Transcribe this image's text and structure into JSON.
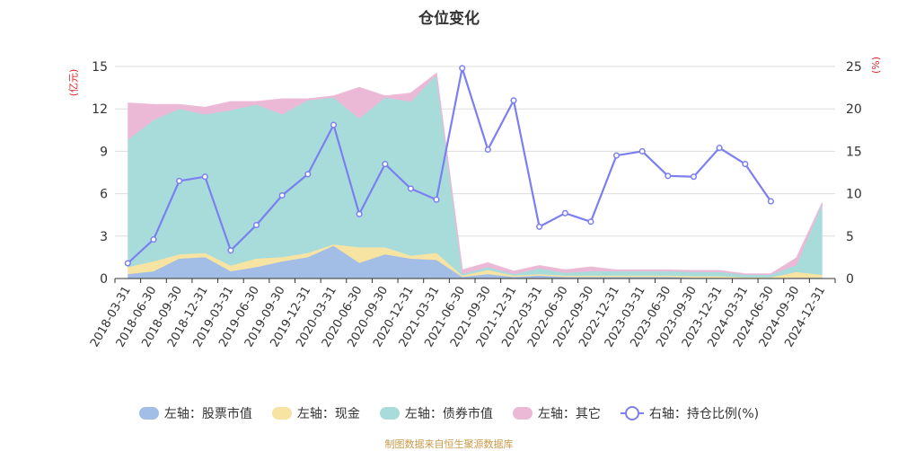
{
  "title": "仓位变化",
  "left_unit": "(亿元)",
  "right_unit": "(%)",
  "source": "制图数据来自恒生聚源数据库",
  "chart_data": {
    "type": "area",
    "categories": [
      "2018-03-31",
      "2018-06-30",
      "2018-09-30",
      "2018-12-31",
      "2019-03-31",
      "2019-06-30",
      "2019-09-30",
      "2019-12-31",
      "2020-03-31",
      "2020-06-30",
      "2020-09-30",
      "2020-12-31",
      "2021-03-31",
      "2021-06-30",
      "2021-09-30",
      "2021-12-31",
      "2022-03-31",
      "2022-06-30",
      "2022-09-30",
      "2022-12-31",
      "2023-03-31",
      "2023-06-30",
      "2023-09-30",
      "2023-12-31",
      "2024-03-31",
      "2024-06-30",
      "2024-09-30",
      "2024-12-31"
    ],
    "left_axis": {
      "min": 0,
      "max": 15,
      "ticks": [
        0,
        3,
        6,
        9,
        12,
        15
      ]
    },
    "right_axis": {
      "min": 0,
      "max": 25,
      "ticks": [
        0,
        5,
        10,
        15,
        20,
        25
      ]
    },
    "stacked_series": [
      {
        "name": "左轴：股票市值",
        "color": "#a2bde6",
        "values": [
          0.3,
          0.5,
          1.4,
          1.5,
          0.5,
          0.8,
          1.2,
          1.5,
          2.3,
          1.1,
          1.7,
          1.4,
          1.3,
          0.1,
          0.3,
          0.1,
          0.2,
          0.1,
          0.1,
          0.1,
          0.1,
          0.1,
          0.05,
          0.05,
          0.02,
          0.02,
          0.05,
          0.05
        ]
      },
      {
        "name": "左轴：现金",
        "color": "#f7e3a2",
        "values": [
          0.5,
          0.7,
          0.3,
          0.3,
          0.4,
          0.6,
          0.3,
          0.3,
          0.1,
          1.1,
          0.5,
          0.2,
          0.5,
          0.1,
          0.3,
          0.1,
          0.1,
          0.1,
          0.1,
          0.1,
          0.1,
          0.1,
          0.1,
          0.1,
          0.05,
          0.05,
          0.4,
          0.2
        ]
      },
      {
        "name": "左轴：债券市值",
        "color": "#a8dcdb",
        "values": [
          9.0,
          10.0,
          10.3,
          9.8,
          11.0,
          10.9,
          10.1,
          10.8,
          10.4,
          9.1,
          10.6,
          10.9,
          12.6,
          0.1,
          0.2,
          0.1,
          0.4,
          0.2,
          0.3,
          0.3,
          0.3,
          0.3,
          0.3,
          0.3,
          0.2,
          0.2,
          0.5,
          5.0
        ]
      },
      {
        "name": "左轴：其它",
        "color": "#ebb8d6",
        "values": [
          2.6,
          1.1,
          0.3,
          0.5,
          0.6,
          0.2,
          1.1,
          0.1,
          0.1,
          2.2,
          0.1,
          0.6,
          0.1,
          0.3,
          0.3,
          0.2,
          0.2,
          0.2,
          0.3,
          0.1,
          0.1,
          0.1,
          0.1,
          0.1,
          0.05,
          0.05,
          0.5,
          0.1
        ]
      }
    ],
    "line_series": {
      "name": "右轴：持仓比例(%)",
      "color": "#7b7ff0",
      "axis": "right",
      "values": [
        1.8,
        4.6,
        11.5,
        12.0,
        3.3,
        6.3,
        9.8,
        12.3,
        18.1,
        7.6,
        13.5,
        10.6,
        9.3,
        24.8,
        15.2,
        21.0,
        6.1,
        7.7,
        6.7,
        14.5,
        15.0,
        12.1,
        12.0,
        15.4,
        13.5,
        9.1,
        null,
        null
      ]
    }
  }
}
